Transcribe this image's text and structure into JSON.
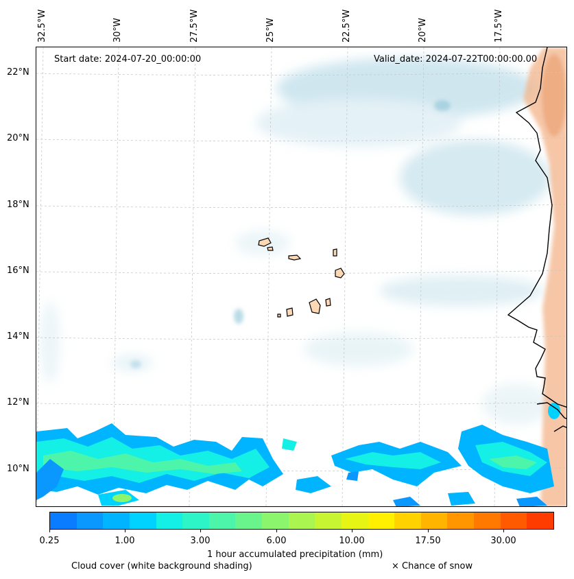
{
  "header": {
    "start_date": "Start date: 2024-07-20_00:00:00",
    "valid_date": "Valid_date: 2024-07-22T00:00:00.00"
  },
  "longitude_labels": [
    "32.5°W",
    "30°W",
    "27.5°W",
    "25°W",
    "22.5°W",
    "20°W",
    "17.5°W"
  ],
  "latitude_labels": [
    "22°N",
    "20°N",
    "18°N",
    "16°N",
    "14°N",
    "12°N",
    "10°N"
  ],
  "colorbar": {
    "title": "1 hour accumulated precipitation (mm)",
    "tick_labels": [
      "0.25",
      "1.00",
      "3.00",
      "6.00",
      "10.00",
      "17.50",
      "30.00"
    ],
    "colors": [
      "#0a7cff",
      "#0a98ff",
      "#00b4ff",
      "#00d2ff",
      "#14f0e6",
      "#2ef5c8",
      "#4cf5aa",
      "#6af58c",
      "#8cf56e",
      "#aaf550",
      "#c8f532",
      "#e6f514",
      "#fff000",
      "#ffd200",
      "#ffb400",
      "#ff9600",
      "#ff7800",
      "#ff5a00",
      "#ff3c00"
    ]
  },
  "legend": {
    "cloud_cover": "Cloud cover (white background shading)",
    "snow": "× Chance of snow"
  }
}
